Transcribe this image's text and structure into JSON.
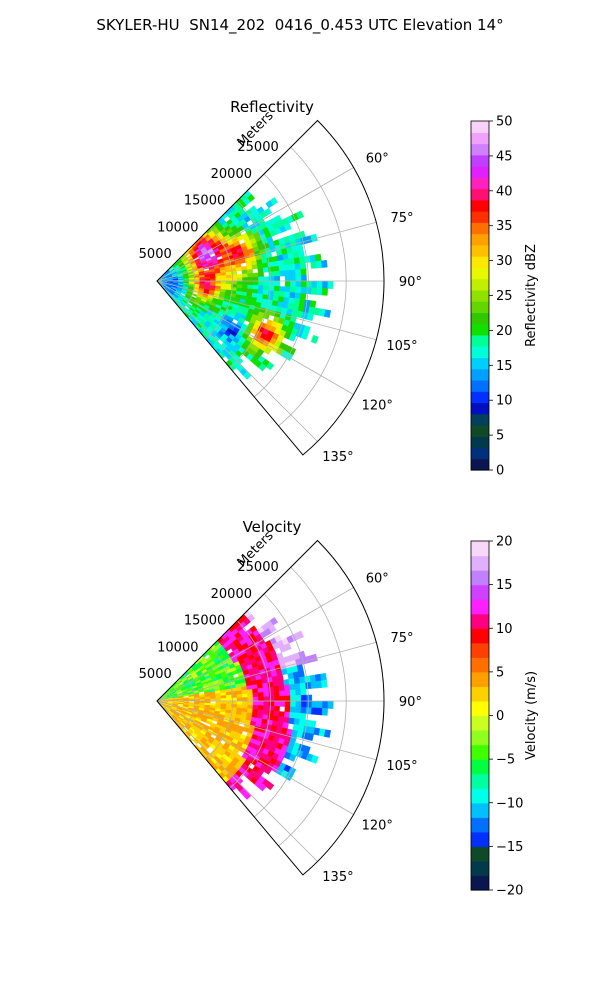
{
  "title": "SKYLER-HU  SN14_202  0416_0.453 UTC Elevation 14°",
  "chart_data": [
    {
      "type": "heatmap",
      "subtype": "polar-ppi-sector",
      "title": "Reflectivity",
      "radial_label": "Meters",
      "radial_ticks": [
        "5000",
        "10000",
        "15000",
        "20000",
        "25000"
      ],
      "radial_tick_values": [
        5000,
        10000,
        15000,
        20000,
        25000
      ],
      "rmax": 30000,
      "angle_ticks": [
        "60°",
        "75°",
        "90°",
        "105°",
        "120°",
        "135°"
      ],
      "angle_tick_values": [
        60,
        75,
        90,
        105,
        120,
        135
      ],
      "theta_range": [
        45,
        140
      ],
      "grid": true,
      "colorbar": {
        "label": "Reflectivity dBZ",
        "min": 0,
        "max": 50,
        "ticks": [
          "0",
          "5",
          "10",
          "15",
          "20",
          "25",
          "30",
          "35",
          "40",
          "45",
          "50"
        ],
        "tick_values": [
          0,
          5,
          10,
          15,
          20,
          25,
          30,
          35,
          40,
          45,
          50
        ]
      },
      "field": {
        "extent_m": 24000,
        "background": 17,
        "features": [
          {
            "az": 58,
            "r": 7500,
            "value": 42,
            "spread": 1800
          },
          {
            "az": 70,
            "r": 12000,
            "value": 34,
            "spread": 1500
          },
          {
            "az": 98,
            "r": 6500,
            "value": 33,
            "spread": 1300
          },
          {
            "az": 116,
            "r": 16000,
            "value": 38,
            "spread": 1700
          },
          {
            "az": 82,
            "r": 9000,
            "value": 28,
            "spread": 2500
          },
          {
            "az": 100,
            "r": 2500,
            "value": 12,
            "spread": 1400
          },
          {
            "az": 123,
            "r": 12000,
            "value": 9,
            "spread": 1000
          }
        ]
      }
    },
    {
      "type": "heatmap",
      "subtype": "polar-ppi-sector",
      "title": "Velocity",
      "radial_label": "Meters",
      "radial_ticks": [
        "5000",
        "10000",
        "15000",
        "20000",
        "25000"
      ],
      "radial_tick_values": [
        5000,
        10000,
        15000,
        20000,
        25000
      ],
      "rmax": 30000,
      "angle_ticks": [
        "60°",
        "75°",
        "90°",
        "105°",
        "120°",
        "135°"
      ],
      "angle_tick_values": [
        60,
        75,
        90,
        105,
        120,
        135
      ],
      "theta_range": [
        45,
        140
      ],
      "grid": true,
      "colorbar": {
        "label": "Velocity (m/s)",
        "min": -20,
        "max": 20,
        "ticks": [
          "−20",
          "−15",
          "−10",
          "−5",
          "0",
          "5",
          "10",
          "15",
          "20"
        ],
        "tick_values": [
          -20,
          -15,
          -10,
          -5,
          0,
          5,
          10,
          15,
          20
        ]
      },
      "field": {
        "extent_m": 24000,
        "inner_near_az": [
          -3,
          4
        ],
        "inner_far_az": [
          4,
          -4
        ],
        "band_value": 11,
        "outer_value": 17,
        "far_value": -11,
        "band_range_m": [
          11000,
          16000
        ]
      }
    }
  ],
  "colors": {
    "reflectivity_scale": [
      "#0a1650",
      "#00307a",
      "#003a4a",
      "#0f4a28",
      "#00405a",
      "#0010c0",
      "#0030ff",
      "#0070ff",
      "#00a0ff",
      "#00d0ff",
      "#00ffd8",
      "#00ff98",
      "#10e000",
      "#30c800",
      "#60d800",
      "#90e000",
      "#c0f000",
      "#e8f800",
      "#ffe800",
      "#ffc000",
      "#ffa000",
      "#ff7000",
      "#ff3000",
      "#ff0000",
      "#ff1070",
      "#ff20c0",
      "#e020ff",
      "#c040ff",
      "#d080ff",
      "#f0a0ff",
      "#f8d0f8"
    ],
    "velocity_scale": [
      "#0a1650",
      "#003a4a",
      "#0f4a28",
      "#0030ff",
      "#0070ff",
      "#00c0ff",
      "#00ffe8",
      "#00ffa0",
      "#00ff40",
      "#40ff00",
      "#90ff20",
      "#c8ff20",
      "#ffff00",
      "#ffd000",
      "#ffa000",
      "#ff7000",
      "#ff4000",
      "#ff0000",
      "#ff0080",
      "#ff20ff",
      "#d040ff",
      "#c080ff",
      "#e0b0ff",
      "#f8d8f8"
    ]
  }
}
